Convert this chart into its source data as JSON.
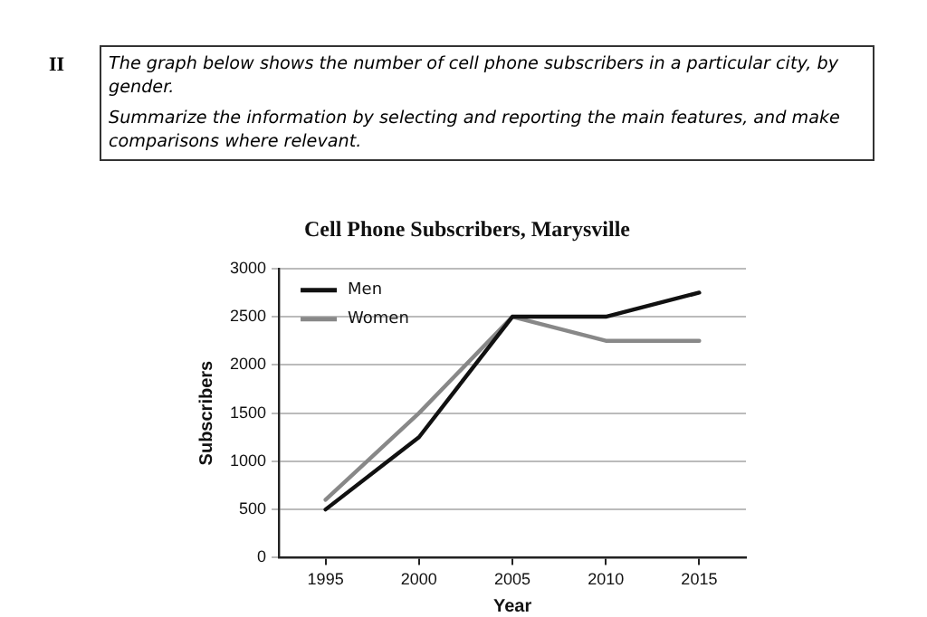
{
  "chart_data": {
    "type": "line",
    "title": "Cell Phone Subscribers, Marysville",
    "xlabel": "Year",
    "ylabel": "Subscribers",
    "annotations": [
      "II",
      "The graph below shows the number of cell phone subscribers in a particular city, by gender.",
      "Summarize the information by selecting and reporting the main features, and make comparisons where relevant."
    ],
    "x": [
      1995,
      2000,
      2005,
      2010,
      2015
    ],
    "series": [
      {
        "name": "Men",
        "color": "#111111",
        "values": [
          500,
          1250,
          2500,
          2500,
          2750
        ]
      },
      {
        "name": "Women",
        "color": "#888888",
        "values": [
          600,
          1500,
          2500,
          2250,
          2250
        ]
      }
    ],
    "xlim": [
      1992.5,
      2017.5
    ],
    "xticks": [
      1995,
      2000,
      2005,
      2010,
      2015
    ],
    "ylim": [
      0,
      3000
    ],
    "yticks": [
      0,
      500,
      1000,
      1500,
      2000,
      2500,
      3000
    ],
    "grid": "y",
    "legend": "top left",
    "marker": "none",
    "line_style": "solid"
  }
}
